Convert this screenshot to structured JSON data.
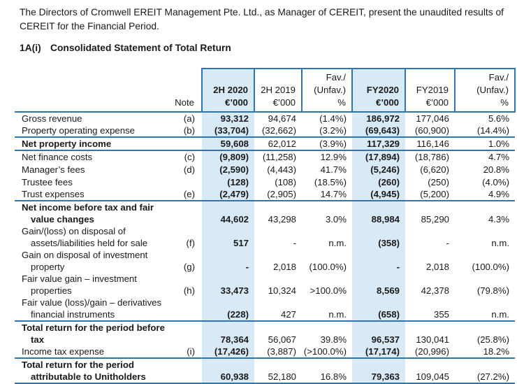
{
  "intro": {
    "paragraph_line1": "The Directors of Cromwell EREIT Management Pte. Ltd., as Manager of CEREIT, present the unaudited results of",
    "paragraph_line2": "CEREIT for the Financial Period.",
    "section_number": "1A(i)",
    "section_title": "Consolidated Statement of Total Return"
  },
  "colors": {
    "accent_blue": "#2E75B6",
    "stripe_blue": "#D9EAF7"
  },
  "table": {
    "header": {
      "note": "Note",
      "columns": [
        {
          "line1": "",
          "line2": "2H 2020",
          "line3": "€’000"
        },
        {
          "line1": "",
          "line2": "2H 2019",
          "line3": "€’000"
        },
        {
          "line1": "Fav./",
          "line2": "(Unfav.)",
          "line3": "%"
        },
        {
          "line1": "",
          "line2": "FY2020",
          "line3": "€’000"
        },
        {
          "line1": "",
          "line2": "FY2019",
          "line3": "€’000"
        },
        {
          "line1": "Fav./",
          "line2": "(Unfav.)",
          "line3": "%"
        }
      ]
    },
    "rows": [
      {
        "label": "Gross revenue",
        "label2": "",
        "note": "(a)",
        "v": [
          "93,312",
          "94,674",
          "(1.4%)",
          "186,972",
          "177,046",
          "5.6%"
        ]
      },
      {
        "label": "Property operating expense",
        "label2": "",
        "note": "(b)",
        "v": [
          "(33,704)",
          "(32,662)",
          "(3.2%)",
          "(69,643)",
          "(60,900)",
          "(14.4%)"
        ]
      },
      {
        "label": "Net property income",
        "label2": "",
        "note": "",
        "v": [
          "59,608",
          "62,012",
          "(3.9%)",
          "117,329",
          "116,146",
          "1.0%"
        ]
      },
      {
        "label": "Net finance costs",
        "label2": "",
        "note": "(c)",
        "v": [
          "(9,809)",
          "(11,258)",
          "12.9%",
          "(17,894)",
          "(18,786)",
          "4.7%"
        ]
      },
      {
        "label": "Manager’s fees",
        "label2": "",
        "note": "(d)",
        "v": [
          "(2,590)",
          "(4,443)",
          "41.7%",
          "(5,246)",
          "(6,620)",
          "20.8%"
        ]
      },
      {
        "label": "Trustee fees",
        "label2": "",
        "note": "",
        "v": [
          "(128)",
          "(108)",
          "(18.5%)",
          "(260)",
          "(250)",
          "(4.0%)"
        ]
      },
      {
        "label": "Trust expenses",
        "label2": "",
        "note": "(e)",
        "v": [
          "(2,479)",
          "(2,905)",
          "14.7%",
          "(4,945)",
          "(5,200)",
          "4.9%"
        ]
      },
      {
        "label": "Net income before tax and fair",
        "label2": "value changes",
        "note": "",
        "v": [
          "44,602",
          "43,298",
          "3.0%",
          "88,984",
          "85,290",
          "4.3%"
        ]
      },
      {
        "label": "Gain/(loss) on disposal of",
        "label2": "assets/liabilities held for sale",
        "note": "(f)",
        "v": [
          "517",
          "-",
          "n.m.",
          "(358)",
          "-",
          "n.m."
        ]
      },
      {
        "label": "Gain on disposal of investment",
        "label2": "property",
        "note": "(g)",
        "v": [
          "-",
          "2,018",
          "(100.0%)",
          "-",
          "2,018",
          "(100.0%)"
        ]
      },
      {
        "label": "Fair value gain – investment",
        "label2": "properties",
        "note": "(h)",
        "v": [
          "33,473",
          "10,324",
          ">100.0%",
          "8,569",
          "42,378",
          "(79.8%)"
        ]
      },
      {
        "label": "Fair value (loss)/gain – derivatives",
        "label2": "financial instruments",
        "note": "",
        "v": [
          "(228)",
          "427",
          "n.m.",
          "(658)",
          "355",
          "n.m."
        ]
      },
      {
        "label": "Total return for the period before",
        "label2": "tax",
        "note": "",
        "v": [
          "78,364",
          "56,067",
          "39.8%",
          "96,537",
          "130,041",
          "(25.8%)"
        ]
      },
      {
        "label": "Income tax expense",
        "label2": "",
        "note": "(i)",
        "v": [
          "(17,426)",
          "(3,887)",
          "(>100.0%)",
          "(17,174)",
          "(20,996)",
          "18.2%"
        ]
      },
      {
        "label": "Total return for the period",
        "label2": "attributable to Unitholders",
        "note": "",
        "v": [
          "60,938",
          "52,180",
          "16.8%",
          "79,363",
          "109,045",
          "(27.2%)"
        ]
      }
    ]
  }
}
